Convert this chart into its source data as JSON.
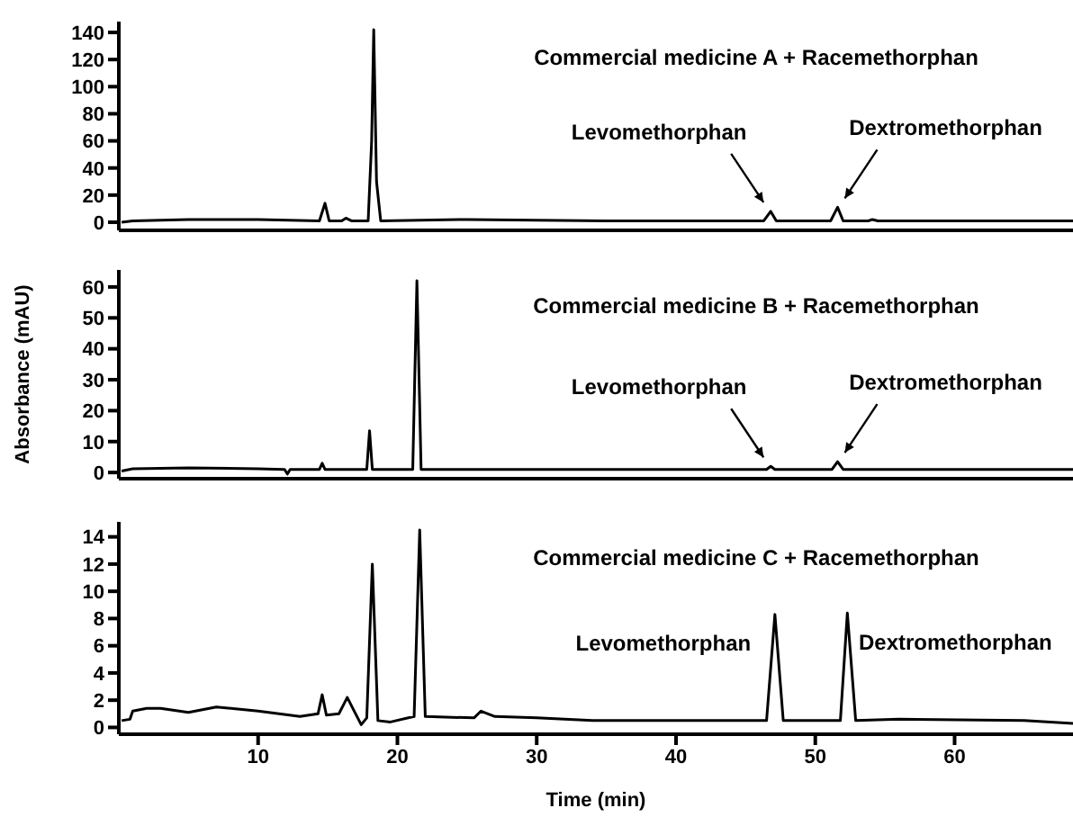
{
  "chart_data": [
    {
      "type": "line",
      "tick_labels": "y",
      "xlim": [
        0,
        68.5
      ],
      "xticks": [
        10,
        20,
        30,
        40,
        50,
        60
      ],
      "ylim": [
        -6,
        148
      ],
      "yticks": [
        0,
        20,
        40,
        60,
        80,
        100,
        120,
        140
      ],
      "annotations": [
        "Commercial medicine A + Racemethorphan",
        {
          "text": "Levomethorphan",
          "x": 46.8,
          "y": 8
        },
        {
          "text": "Dextromethorphan",
          "x": 51.6,
          "y": 11
        }
      ],
      "series": [
        {
          "color": "#000000",
          "x": [
            0.2,
            1,
            5,
            10,
            14.4,
            14.8,
            15.1,
            16,
            16.3,
            16.7,
            17.9,
            18.15,
            18.3,
            18.5,
            18.8,
            25,
            35,
            46.3,
            46.8,
            47.2,
            51.1,
            51.6,
            52,
            53.8,
            54.1,
            54.5,
            60,
            68.5
          ],
          "values": [
            0,
            1,
            2,
            2,
            1,
            14,
            1,
            1,
            3,
            1,
            1,
            60,
            142,
            30,
            1,
            2,
            1,
            1,
            8,
            1,
            1,
            11,
            1,
            1,
            2,
            1,
            1,
            1
          ]
        }
      ]
    },
    {
      "type": "line",
      "tick_labels": "y",
      "xlim": [
        0,
        68.5
      ],
      "xticks": [
        10,
        20,
        30,
        40,
        50,
        60
      ],
      "ylim": [
        -2,
        65.5
      ],
      "yticks": [
        0,
        10,
        20,
        30,
        40,
        50,
        60
      ],
      "ylabel": "Absorbance (mAU)",
      "annotations": [
        "Commercial medicine B + Racemethorphan",
        {
          "text": "Levomethorphan",
          "x": 46.8,
          "y": 2
        },
        {
          "text": "Dextromethorphan",
          "x": 51.6,
          "y": 3.5
        }
      ],
      "series": [
        {
          "color": "#000000",
          "x": [
            0.2,
            1,
            5,
            10,
            11.9,
            12.1,
            12.3,
            14.4,
            14.6,
            14.8,
            17.8,
            18,
            18.2,
            21.1,
            21.4,
            21.7,
            25,
            35,
            46.5,
            46.8,
            47.1,
            51.2,
            51.6,
            52,
            60,
            68.5
          ],
          "values": [
            0.5,
            1.2,
            1.5,
            1.2,
            1,
            -0.5,
            1,
            1,
            3,
            1,
            1,
            13.5,
            1,
            1,
            62,
            1,
            1,
            1,
            1,
            2,
            1,
            1,
            3.5,
            1,
            1,
            1
          ]
        }
      ]
    },
    {
      "type": "line",
      "xlim": [
        0,
        68.5
      ],
      "xticks": [
        10,
        20,
        30,
        40,
        50,
        60
      ],
      "ylim": [
        -0.5,
        15.1
      ],
      "yticks": [
        0,
        2,
        4,
        6,
        8,
        10,
        12,
        14
      ],
      "xlabel": "Time (min)",
      "annotations": [
        "Commercial medicine C + Racemethorphan",
        {
          "text": "Levomethorphan",
          "x": 47.1,
          "y": 8.3
        },
        {
          "text": "Dextromethorphan",
          "x": 52.3,
          "y": 8.4
        }
      ],
      "series": [
        {
          "color": "#000000",
          "x": [
            0.2,
            0.8,
            1,
            2,
            3,
            5,
            7,
            10,
            13,
            14.3,
            14.6,
            14.9,
            15.8,
            16.4,
            17,
            17.4,
            17.8,
            18.2,
            18.6,
            19.5,
            21.2,
            21.6,
            22,
            25.5,
            26,
            27,
            30,
            34,
            40,
            46.5,
            47.1,
            47.7,
            51.8,
            52.3,
            52.9,
            56,
            65,
            68.5
          ],
          "values": [
            0.5,
            0.6,
            1.2,
            1.4,
            1.4,
            1.1,
            1.5,
            1.2,
            0.8,
            1,
            2.4,
            0.9,
            1,
            2.2,
            1,
            0.2,
            0.7,
            12,
            0.5,
            0.4,
            0.8,
            14.5,
            0.8,
            0.7,
            1.2,
            0.8,
            0.7,
            0.5,
            0.5,
            0.5,
            8.3,
            0.5,
            0.5,
            8.4,
            0.5,
            0.6,
            0.5,
            0.3
          ]
        }
      ]
    }
  ]
}
